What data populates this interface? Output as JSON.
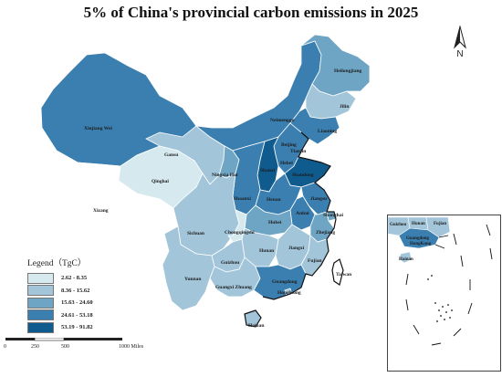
{
  "title": "5% of China's provincial carbon emissions in 2025",
  "colors": {
    "class1": "#d5e9ef",
    "class2": "#a3c5da",
    "class3": "#6fa5c4",
    "class4": "#3b7fb0",
    "class5": "#0f5b8e",
    "outline": "#ffffff",
    "coast": "#111111"
  },
  "legend": {
    "title": "Legend（TgC）",
    "items": [
      {
        "label": "2.62 - 8.35",
        "class": "class1"
      },
      {
        "label": "8.36 - 15.62",
        "class": "class2"
      },
      {
        "label": "15.63 - 24.60",
        "class": "class3"
      },
      {
        "label": "24.61 - 53.18",
        "class": "class4"
      },
      {
        "label": "53.19 - 91.82",
        "class": "class5"
      }
    ]
  },
  "scale_bar": {
    "ticks": [
      "0",
      "250",
      "500",
      "1000 Miles"
    ]
  },
  "north_arrow": {
    "letter": "N",
    "icon": "north-arrow-icon"
  },
  "provinces": [
    {
      "id": "xinjiang",
      "label": "Xinjiang Wei",
      "class": "class4"
    },
    {
      "id": "xizang",
      "label": "Xizang",
      "class": "none"
    },
    {
      "id": "qinghai",
      "label": "Qinghai",
      "class": "class1"
    },
    {
      "id": "gansu",
      "label": "Gansu",
      "class": "class2"
    },
    {
      "id": "neimenggu",
      "label": "Neimenggu",
      "class": "class4"
    },
    {
      "id": "heilongjiang",
      "label": "Heilongjiang",
      "class": "class3"
    },
    {
      "id": "jilin",
      "label": "Jilin",
      "class": "class2"
    },
    {
      "id": "liaoning",
      "label": "Liaoning",
      "class": "class4"
    },
    {
      "id": "beijing",
      "label": "Beijing",
      "class": "class1"
    },
    {
      "id": "tianjin",
      "label": "Tianjin",
      "class": "class2"
    },
    {
      "id": "hebei",
      "label": "Hebei",
      "class": "class4"
    },
    {
      "id": "shanxi",
      "label": "Shanxi",
      "class": "class5"
    },
    {
      "id": "shandong",
      "label": "Shandong",
      "class": "class5"
    },
    {
      "id": "ningxia",
      "label": "Ningxia Hui",
      "class": "class3"
    },
    {
      "id": "shaanxi",
      "label": "Shaanxi",
      "class": "class4"
    },
    {
      "id": "henan",
      "label": "Henan",
      "class": "class4"
    },
    {
      "id": "jiangsu",
      "label": "Jiangsu",
      "class": "class4"
    },
    {
      "id": "anhui",
      "label": "Anhui",
      "class": "class4"
    },
    {
      "id": "shanghai",
      "label": "Shanghai",
      "class": "class3"
    },
    {
      "id": "hubei",
      "label": "Hubei",
      "class": "class3"
    },
    {
      "id": "zhejiang",
      "label": "Zhejiang",
      "class": "class3"
    },
    {
      "id": "sichuan",
      "label": "Sichuan",
      "class": "class2"
    },
    {
      "id": "chongqing",
      "label": "Chongqingshi",
      "class": "class1"
    },
    {
      "id": "hunan",
      "label": "Hunan",
      "class": "class2"
    },
    {
      "id": "jiangxi",
      "label": "Jiangxi",
      "class": "class2"
    },
    {
      "id": "guizhou",
      "label": "Guizhou",
      "class": "class2"
    },
    {
      "id": "fujian",
      "label": "Fujian",
      "class": "class2"
    },
    {
      "id": "yunnan",
      "label": "Yunnan",
      "class": "class2"
    },
    {
      "id": "guangxi",
      "label": "Guangxi Zhuang",
      "class": "class2"
    },
    {
      "id": "guangdong",
      "label": "Guangdong",
      "class": "class4"
    },
    {
      "id": "hongkong",
      "label": "HongKong",
      "class": "class2"
    },
    {
      "id": "taiwan",
      "label": "Taiwan",
      "class": "none"
    },
    {
      "id": "hainan",
      "label": "Hainan",
      "class": "class2"
    }
  ],
  "inset_labels": {
    "guizhou": "Guizhou",
    "hunan": "Hunan",
    "fujian": "Fujian",
    "guangdong": "Guangdong",
    "hongkong": "HongKong",
    "hainan": "Hainan"
  }
}
